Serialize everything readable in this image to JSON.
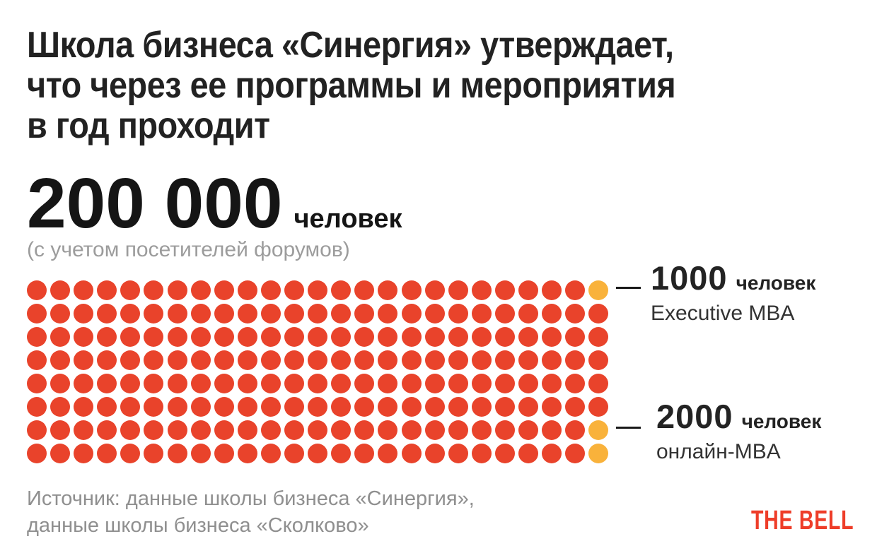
{
  "header": {
    "title_lines": [
      "Школа бизнеса «Синергия» утверждает,",
      "что через ее программы и мероприятия",
      "в год проходит"
    ]
  },
  "headline": {
    "value": "200 000",
    "unit": "человек",
    "note": "(с учетом посетителей форумов)"
  },
  "chart_data": {
    "type": "pictogram",
    "title": "200 000 человек (с учетом посетителей форумов)",
    "rows": 8,
    "cols": 25,
    "total_dots": 200,
    "dot_value": 1000,
    "total_value": 200000,
    "dot_color": "#E9432B",
    "highlight_color": "#F9B23B",
    "highlight_cells": [
      [
        0,
        24
      ],
      [
        6,
        24
      ],
      [
        7,
        24
      ]
    ],
    "annotations": [
      {
        "value": "1000",
        "unit": "человек",
        "program": "Executive MBA",
        "highlight_dots": 1
      },
      {
        "value": "2000",
        "unit": "человек",
        "program": "онлайн-MBA",
        "highlight_dots": 2
      }
    ],
    "legend_position": "right"
  },
  "source": {
    "lines": [
      "Источник: данные школы бизнеса «Синергия»,",
      "данные школы бизнеса «Сколково»"
    ]
  },
  "brand": {
    "name": "THE BELL",
    "color": "#EE3D29"
  }
}
